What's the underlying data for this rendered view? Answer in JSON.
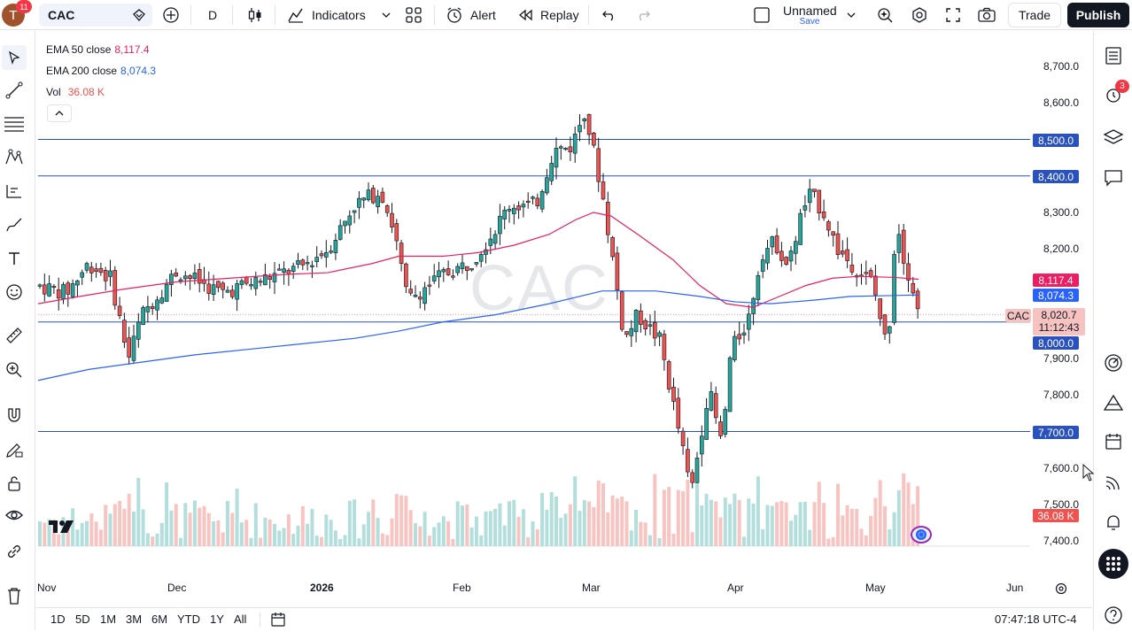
{
  "toolbar": {
    "avatar_letter": "T",
    "notification_count": "11",
    "symbol": "CAC",
    "interval": "D",
    "indicators_label": "Indicators",
    "alert_label": "Alert",
    "replay_label": "Replay",
    "layout_name": "Unnamed",
    "layout_save": "Save",
    "trade_label": "Trade",
    "publish_label": "Publish"
  },
  "legend": {
    "ema50_label": "EMA 50 close",
    "ema50_value": "8,117.4",
    "ema200_label": "EMA 200 close",
    "ema200_value": "8,074.3",
    "vol_label": "Vol",
    "vol_value": "36.08 K"
  },
  "watermark": "CAC",
  "price_axis": [
    "8,700.0",
    "8,600.0",
    "8,300.0",
    "8,200.0",
    "7,900.0",
    "7,800.0",
    "7,600.0",
    "7,500.0",
    "7,400.0"
  ],
  "price_tags": {
    "level_8500": "8,500.0",
    "level_8400": "8,400.0",
    "ema50": "8,117.4",
    "ema200": "8,074.3",
    "level_8000": "8,000.0",
    "level_7700": "7,700.0",
    "volume": "36.08 K",
    "symbol_tag": "CAC",
    "last_price": "8,020.7",
    "countdown": "11:12:43"
  },
  "time_axis": [
    "Nov",
    "Dec",
    "2026",
    "Feb",
    "Mar",
    "Apr",
    "May",
    "Jun"
  ],
  "ranges": [
    "1D",
    "5D",
    "1M",
    "3M",
    "6M",
    "YTD",
    "1Y",
    "All"
  ],
  "clock": "07:47:18 UTC-4",
  "alerts_badge": "3",
  "colors": {
    "up": "#26a69a",
    "down": "#ef5350",
    "ema50": "#e91e63",
    "ema200": "#2962ff",
    "hline": "#2a52be"
  },
  "chart_data": {
    "type": "candlestick",
    "horizontal_lines": [
      8500,
      8400,
      8000,
      7700
    ],
    "last_price": 8020.7,
    "ema50": 8117.4,
    "ema200": 8074.3,
    "volume_last": "36.08 K",
    "y_range": [
      7380,
      8740
    ]
  }
}
